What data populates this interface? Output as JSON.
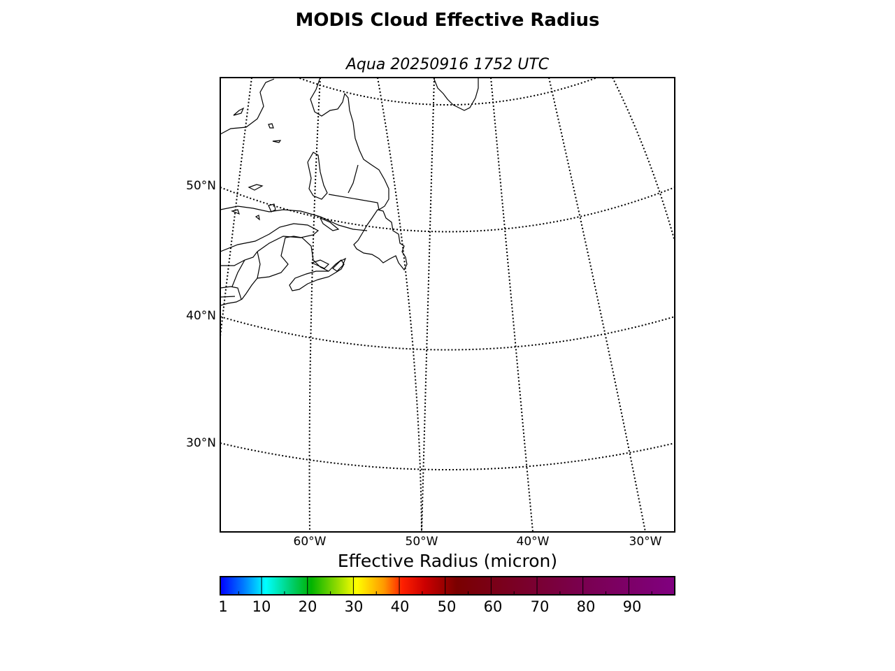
{
  "title": "MODIS Cloud Effective Radius",
  "subtitle": "Aqua 20250916 1752 UTC",
  "map": {
    "projection": "conic",
    "latitude_labels": [
      "50°N",
      "40°N",
      "30°N"
    ],
    "longitude_labels": [
      "60°W",
      "50°W",
      "40°W",
      "30°W"
    ],
    "graticule_style": "dotted",
    "data_present": false
  },
  "colorbar": {
    "label": "Effective Radius (micron)",
    "ticks": [
      "1",
      "10",
      "20",
      "30",
      "40",
      "50",
      "60",
      "70",
      "80",
      "90"
    ],
    "range": [
      1,
      100
    ],
    "colors": [
      "#0000ff",
      "#0033ff",
      "#0066ff",
      "#0099ff",
      "#00ccff",
      "#00ffff",
      "#00e6aa",
      "#00cc66",
      "#00b300",
      "#66cc00",
      "#ccee00",
      "#ffff00",
      "#ffcc00",
      "#ff9900",
      "#ff6600",
      "#ff0000",
      "#dd0000",
      "#bb0000",
      "#800000",
      "#7a0020",
      "#750040",
      "#800080"
    ]
  }
}
